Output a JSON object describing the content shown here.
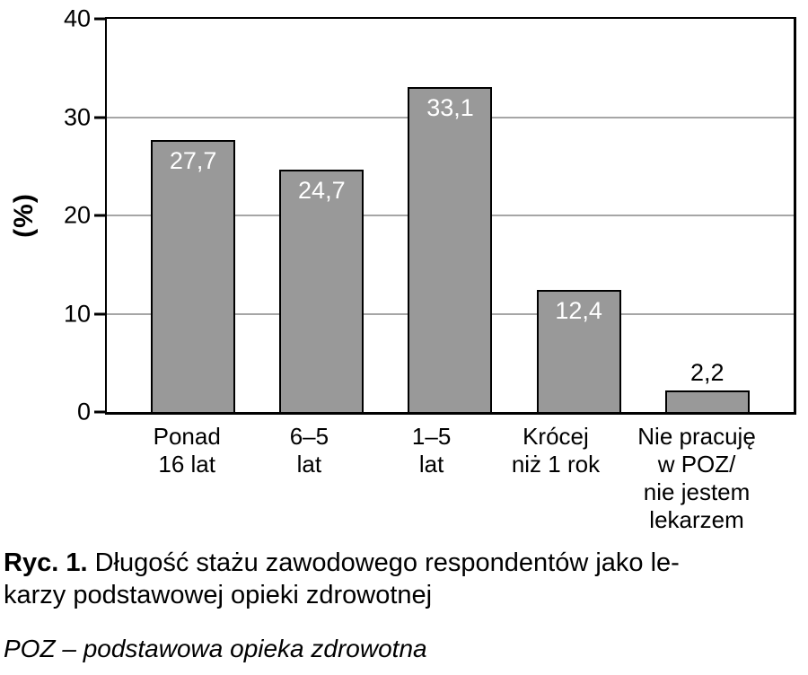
{
  "figure": {
    "caption": {
      "bold_label": "Ryc. 1.",
      "line1": "Długość stażu zawodowego respondentów jako le-",
      "line2": "karzy podstawowej opieki zdrowotnej"
    },
    "footnote": "POZ – podstawowa opieka zdrowotna"
  },
  "chart_data": {
    "type": "bar",
    "title": "",
    "xlabel": "",
    "ylabel": "(%)",
    "ylim": [
      0,
      40
    ],
    "yticks": [
      0,
      10,
      20,
      30,
      40
    ],
    "grid": "horizontal gridlines at 10, 20, 30; full black frame around plot",
    "legend_position": "none",
    "categories": [
      "Ponad\n16 lat",
      "6–5\nlat",
      "1–5\nlat",
      "Krócej\nniż 1 rok",
      "Nie pracuję\nw POZ/\nnie jestem\nlekarzem"
    ],
    "values": [
      27.7,
      24.7,
      33.1,
      12.4,
      2.2
    ],
    "display_values": [
      "27,7",
      "24,7",
      "33,1",
      "12,4",
      "2,2"
    ],
    "value_label_placement": [
      "inside-top",
      "inside-top",
      "inside-top",
      "inside-top",
      "above"
    ],
    "colors": {
      "bar_fill": "#999999",
      "bar_border": "#000000",
      "value_label_inside": "#ffffff",
      "value_label_above": "#000000",
      "gridline": "#a6a6a6",
      "axis": "#000000"
    }
  }
}
